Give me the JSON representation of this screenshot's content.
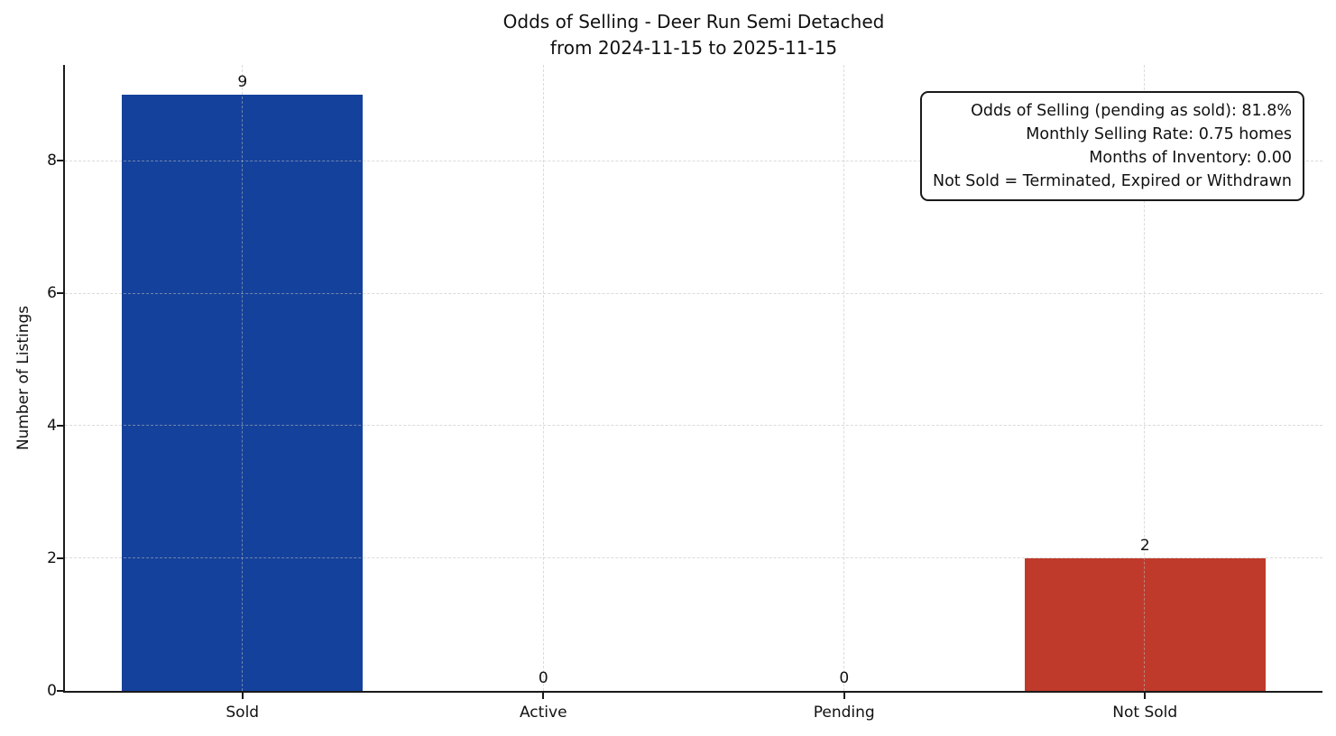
{
  "chart_data": {
    "type": "bar",
    "title": "Odds of Selling - Deer Run Semi Detached from 2024-11-15 to 2025-11-15",
    "title_lines": [
      "Odds of Selling - Deer Run Semi Detached",
      "from 2024-11-15 to 2025-11-15"
    ],
    "categories": [
      "Sold",
      "Active",
      "Pending",
      "Not Sold"
    ],
    "values": [
      9,
      0,
      0,
      2
    ],
    "value_labels": [
      "9",
      "0",
      "0",
      "2"
    ],
    "bar_colors": [
      "#14419b",
      "#14419b",
      "#14419b",
      "#bf3a2b"
    ],
    "xlabel": "",
    "ylabel": "Number of Listings",
    "yticks": [
      0,
      2,
      4,
      6,
      8
    ],
    "ylim": [
      0,
      9.45
    ],
    "xlim": [
      -0.59,
      3.59
    ],
    "bar_width": 0.8,
    "grid": "dashed light-gray gridlines, horizontal and vertical, drawn above bars",
    "legend": "none",
    "annotation": {
      "position": "top-right",
      "lines": [
        "Odds of Selling (pending as sold): 81.8%",
        "Monthly Selling Rate: 0.75 homes",
        "Months of Inventory: 0.00",
        "Not Sold = Terminated, Expired or Withdrawn"
      ]
    },
    "colors": {
      "sold_bar": "#14419b",
      "not_sold_bar": "#bf3a2b",
      "axis": "#1a1a1a",
      "text": "#111111",
      "background": "#ffffff"
    }
  }
}
